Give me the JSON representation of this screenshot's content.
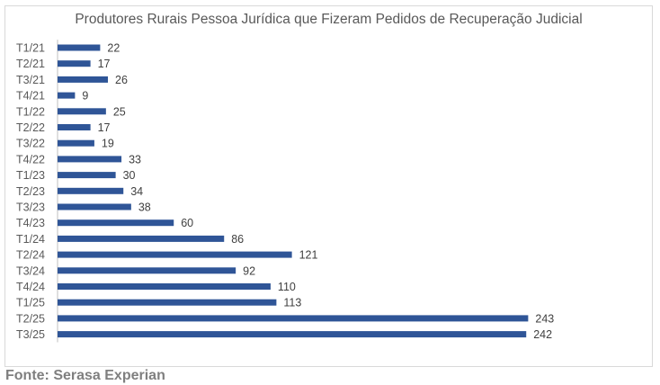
{
  "chart_data": {
    "type": "bar",
    "orientation": "horizontal",
    "title": "Produtores Rurais Pessoa Jurídica que Fizeram Pedidos de Recuperação Judicial",
    "categories": [
      "T1/21",
      "T2/21",
      "T3/21",
      "T4/21",
      "T1/22",
      "T2/22",
      "T3/22",
      "T4/22",
      "T1/23",
      "T2/23",
      "T3/23",
      "T4/23",
      "T1/24",
      "T2/24",
      "T3/24",
      "T4/24",
      "T1/25",
      "T2/25",
      "T3/25"
    ],
    "values": [
      22,
      17,
      26,
      9,
      25,
      17,
      19,
      33,
      30,
      34,
      38,
      60,
      86,
      121,
      92,
      110,
      113,
      243,
      242
    ],
    "xlim": [
      0,
      260
    ],
    "grid": false,
    "legend": "none",
    "bar_color": "#2f5597"
  },
  "footer": {
    "source": "Fonte: Serasa Experian"
  }
}
